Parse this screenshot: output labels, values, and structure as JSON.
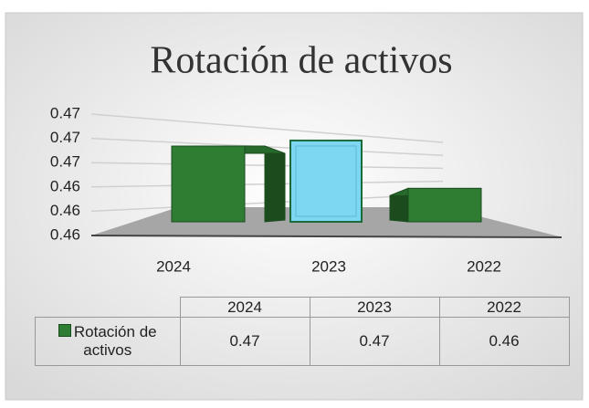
{
  "chart_data": {
    "type": "bar3d",
    "title": "Rotación de activos",
    "categories": [
      "2024",
      "2023",
      "2022"
    ],
    "series": [
      {
        "name": "Rotación de activos",
        "color": "#2e7d32",
        "values": [
          0.4668,
          0.4673,
          0.463
        ],
        "value_labels": [
          "0.47",
          "0.47",
          "0.46"
        ]
      }
    ],
    "point_colors": [
      "#2e7d32",
      "#7dd6f2",
      "#2e7d32"
    ],
    "ylim": [
      0.46,
      0.47
    ],
    "yticks": [
      {
        "value": 0.46,
        "label": "0.46"
      },
      {
        "value": 0.462,
        "label": "0.46"
      },
      {
        "value": 0.464,
        "label": "0.46"
      },
      {
        "value": 0.466,
        "label": "0.47"
      },
      {
        "value": 0.468,
        "label": "0.47"
      },
      {
        "value": 0.47,
        "label": "0.47"
      }
    ],
    "grid": true,
    "data_table": true
  }
}
